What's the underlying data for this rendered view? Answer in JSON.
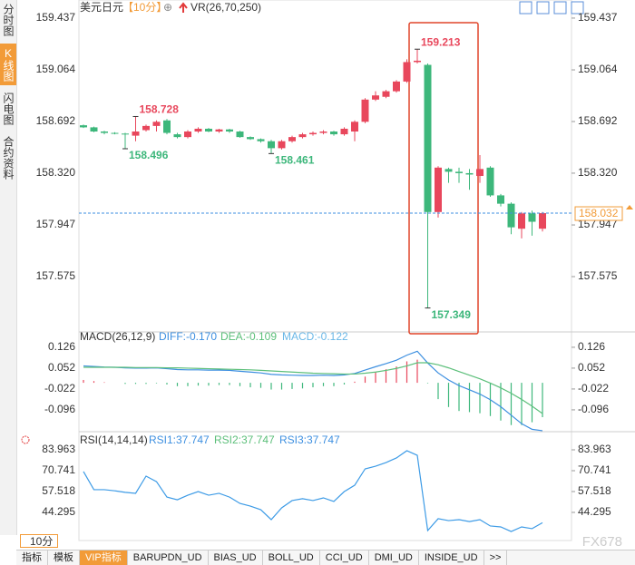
{
  "sidebar": [
    "分时图",
    "K线图",
    "闪电图",
    "合约资料"
  ],
  "header": {
    "symbol": "美元日元",
    "period": "【10分】",
    "zoom": "⊕",
    "indicator": "VR(26,70,250)"
  },
  "period_button": "10分",
  "tabs": [
    "指标",
    "模板",
    "VIP指标",
    "BARUPDN_UD",
    "BIAS_UD",
    "BOLL_UD",
    "CCI_UD",
    "DMI_UD",
    "INSIDE_UD",
    ">>"
  ],
  "watermark": "FX678",
  "chart_data": [
    {
      "type": "candlestick",
      "up_color": "#e8475c",
      "down_color": "#3db77b",
      "open": [
        158.665,
        158.65,
        158.62,
        158.61,
        158.605,
        158.59,
        158.63,
        158.66,
        158.7,
        158.6,
        158.58,
        158.62,
        158.64,
        158.62,
        158.635,
        158.62,
        158.58,
        158.565,
        158.55,
        158.5,
        158.55,
        158.58,
        158.6,
        158.61,
        158.62,
        158.6,
        158.62,
        158.69,
        158.85,
        158.87,
        158.91,
        158.98,
        159.12,
        159.1,
        158.04,
        158.35,
        158.33,
        158.32,
        158.3,
        158.36,
        158.16,
        158.1,
        157.92,
        158.03,
        157.92
      ],
      "high": [
        158.67,
        158.655,
        158.625,
        158.615,
        158.61,
        158.728,
        158.67,
        158.7,
        158.71,
        158.61,
        158.63,
        158.65,
        158.645,
        158.64,
        158.64,
        158.625,
        158.585,
        158.57,
        158.56,
        158.56,
        158.59,
        158.61,
        158.62,
        158.63,
        158.625,
        158.65,
        158.7,
        158.86,
        158.91,
        158.92,
        158.99,
        159.14,
        159.213,
        159.11,
        158.37,
        158.36,
        158.36,
        158.35,
        158.45,
        158.37,
        158.17,
        158.11,
        158.04,
        158.05,
        158.04
      ],
      "low": [
        158.645,
        158.615,
        158.6,
        158.6,
        158.496,
        158.55,
        158.62,
        158.62,
        158.6,
        158.57,
        158.57,
        158.61,
        158.615,
        158.61,
        158.61,
        158.575,
        158.56,
        158.54,
        158.461,
        158.49,
        158.54,
        158.57,
        158.59,
        158.6,
        158.59,
        158.59,
        158.55,
        158.68,
        158.84,
        158.86,
        158.9,
        158.97,
        159.11,
        157.349,
        158.0,
        158.25,
        158.25,
        158.2,
        158.25,
        158.15,
        158.08,
        157.88,
        157.85,
        157.87,
        157.9
      ],
      "close": [
        158.65,
        158.62,
        158.61,
        158.605,
        158.6,
        158.62,
        158.66,
        158.69,
        158.61,
        158.58,
        158.62,
        158.64,
        158.62,
        158.635,
        158.62,
        158.58,
        158.565,
        158.55,
        158.5,
        158.55,
        158.58,
        158.6,
        158.61,
        158.62,
        158.6,
        158.64,
        158.69,
        158.85,
        158.88,
        158.91,
        158.98,
        159.12,
        159.13,
        158.04,
        158.36,
        158.33,
        158.32,
        158.31,
        158.35,
        158.16,
        158.1,
        157.93,
        158.03,
        157.97,
        158.032
      ],
      "markers": [
        {
          "index": 5,
          "value": 158.728
        },
        {
          "index": 4,
          "value": 158.496
        },
        {
          "index": 18,
          "value": 158.461
        },
        {
          "index": 32,
          "value": 159.213
        },
        {
          "index": 33,
          "value": 157.349
        }
      ],
      "last_price": 158.032,
      "ylim": [
        157.183,
        159.515
      ],
      "yticks": [
        159.437,
        159.064,
        158.692,
        {
          "value": 158.32,
          "label": "158.320"
        },
        157.947,
        157.575
      ]
    },
    {
      "type": "macd",
      "title": "MACD(26,12,9)",
      "series": [
        {
          "name": "DIFF:-0.170",
          "color": "#3d8fe0",
          "values": [
            0.06,
            0.058,
            0.056,
            0.055,
            0.053,
            0.052,
            0.052,
            0.053,
            0.05,
            0.047,
            0.046,
            0.046,
            0.045,
            0.045,
            0.044,
            0.041,
            0.038,
            0.035,
            0.03,
            0.028,
            0.027,
            0.026,
            0.026,
            0.027,
            0.026,
            0.028,
            0.033,
            0.045,
            0.057,
            0.068,
            0.08,
            0.098,
            0.112,
            0.07,
            0.035,
            0.01,
            -0.01,
            -0.025,
            -0.04,
            -0.06,
            -0.085,
            -0.115,
            -0.145,
            -0.165,
            -0.17
          ]
        },
        {
          "name": "DEA:-0.109",
          "color": "#5cbf7a",
          "values": [
            0.055,
            0.055,
            0.055,
            0.055,
            0.055,
            0.054,
            0.054,
            0.054,
            0.053,
            0.053,
            0.052,
            0.051,
            0.05,
            0.049,
            0.048,
            0.047,
            0.046,
            0.044,
            0.042,
            0.04,
            0.038,
            0.036,
            0.034,
            0.033,
            0.032,
            0.031,
            0.031,
            0.034,
            0.038,
            0.044,
            0.051,
            0.06,
            0.071,
            0.071,
            0.064,
            0.053,
            0.04,
            0.027,
            0.014,
            -0.001,
            -0.018,
            -0.037,
            -0.059,
            -0.083,
            -0.109
          ]
        },
        {
          "name": "MACD:-0.122",
          "color": "#6ab8e8",
          "up_color": "#e8475c",
          "down_color": "#3db77b",
          "values": [
            0.01,
            0.006,
            0.002,
            0.0,
            -0.004,
            -0.004,
            -0.004,
            -0.002,
            -0.006,
            -0.012,
            -0.012,
            -0.01,
            -0.01,
            -0.008,
            -0.008,
            -0.012,
            -0.016,
            -0.018,
            -0.024,
            -0.024,
            -0.022,
            -0.02,
            -0.016,
            -0.012,
            -0.012,
            -0.006,
            0.004,
            0.022,
            0.038,
            0.048,
            0.058,
            0.076,
            0.082,
            -0.002,
            -0.058,
            -0.086,
            -0.1,
            -0.104,
            -0.108,
            -0.118,
            -0.134,
            -0.15,
            -0.15,
            -0.14,
            -0.122
          ]
        }
      ],
      "ylim": [
        -0.167,
        0.174
      ],
      "yticks": [
        0.126,
        0.052,
        -0.022,
        -0.096
      ]
    },
    {
      "type": "line",
      "title": "RSI(14,14,14)",
      "legend": [
        {
          "name": "RSI1:37.747",
          "color": "#3d8fe0"
        },
        {
          "name": "RSI2:37.747",
          "color": "#5cbf7a"
        },
        {
          "name": "RSI3:37.747",
          "color": "#3d8fe0"
        }
      ],
      "series": [
        {
          "color": "#3d9be6",
          "values": [
            70.2,
            58.7,
            58.7,
            58.0,
            57.0,
            56.4,
            67.3,
            63.8,
            54.0,
            52.3,
            55.2,
            57.5,
            55.2,
            56.4,
            54.0,
            50.0,
            48.3,
            46.0,
            39.7,
            47.2,
            51.8,
            53.0,
            51.8,
            53.5,
            51.2,
            57.5,
            61.5,
            71.9,
            73.6,
            75.9,
            78.8,
            83.4,
            80.5,
            32.8,
            40.3,
            39.1,
            39.7,
            38.5,
            39.7,
            35.7,
            35.1,
            32.2,
            35.1,
            34.0,
            37.747
          ]
        }
      ],
      "ylim": [
        27.05,
        94.31
      ],
      "yticks": [
        83.963,
        70.741,
        57.518,
        44.295
      ]
    }
  ]
}
